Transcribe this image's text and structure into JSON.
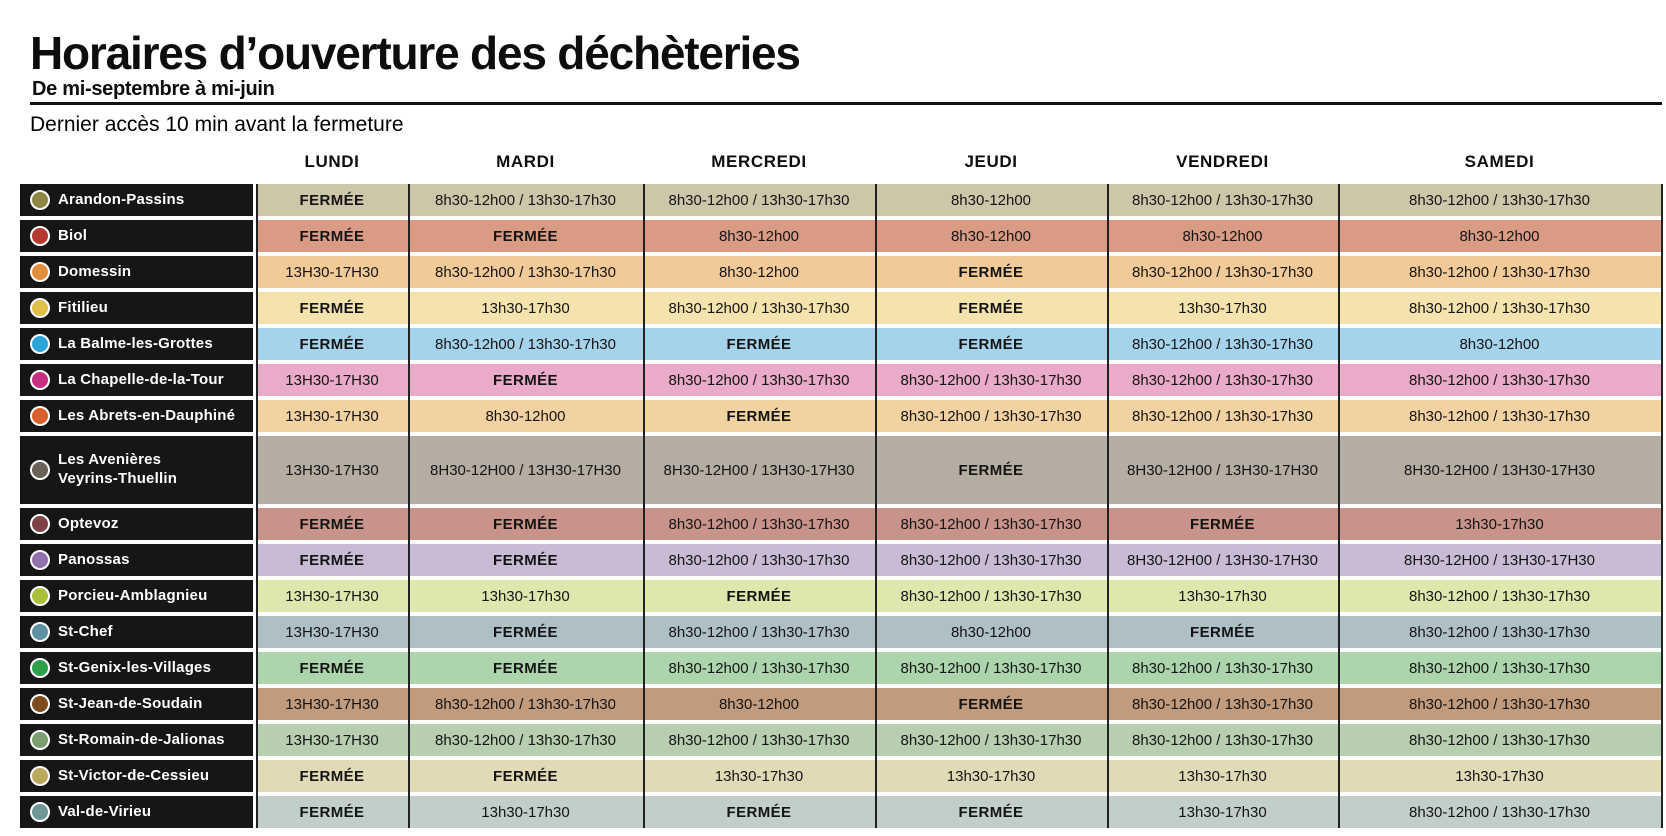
{
  "page": {
    "title": "Horaires d’ouverture des déchèteries",
    "subtitle": "De mi-septembre à mi-juin",
    "note": "Dernier accès 10 min avant la fermeture"
  },
  "table": {
    "day_headers": [
      "LUNDI",
      "MARDI",
      "MERCREDI",
      "JEUDI",
      "VENDREDI",
      "SAMEDI"
    ],
    "closed_label": "FERMÉE",
    "rows": [
      {
        "name": "Arandon-Passins",
        "dot_color": "#8d8748",
        "row_color": "#cdc7a9",
        "hours": [
          "FERMÉE",
          "8h30-12h00 / 13h30-17h30",
          "8h30-12h00 / 13h30-17h30",
          "8h30-12h00",
          "8h30-12h00 / 13h30-17h30",
          "8h30-12h00 / 13h30-17h30"
        ]
      },
      {
        "name": "Biol",
        "dot_color": "#b33931",
        "row_color": "#d99b84",
        "hours": [
          "FERMÉE",
          "FERMÉE",
          "8h30-12h00",
          "8h30-12h00",
          "8h30-12h00",
          "8h30-12h00"
        ]
      },
      {
        "name": "Domessin",
        "dot_color": "#e28d3b",
        "row_color": "#f2ca97",
        "hours": [
          "13H30-17H30",
          "8h30-12h00 / 13h30-17h30",
          "8h30-12h00",
          "FERMÉE",
          "8h30-12h00 / 13h30-17h30",
          "8h30-12h00 / 13h30-17h30"
        ]
      },
      {
        "name": "Fitilieu",
        "dot_color": "#dfc04a",
        "row_color": "#f5e3ad",
        "hours": [
          "FERMÉE",
          "13h30-17h30",
          "8h30-12h00 / 13h30-17h30",
          "FERMÉE",
          "13h30-17h30",
          "8h30-12h00 / 13h30-17h30"
        ]
      },
      {
        "name": "La Balme-les-Grottes",
        "dot_color": "#2aa6db",
        "row_color": "#a6d3ec",
        "hours": [
          "FERMÉE",
          "8h30-12h00 / 13h30-17h30",
          "FERMÉE",
          "FERMÉE",
          "8h30-12h00 / 13h30-17h30",
          "8h30-12h00"
        ]
      },
      {
        "name": "La Chapelle-de-la-Tour",
        "dot_color": "#c62f81",
        "row_color": "#e9abc7",
        "hours": [
          "13H30-17H30",
          "FERMÉE",
          "8h30-12h00 / 13h30-17h30",
          "8h30-12h00 / 13h30-17h30",
          "8h30-12h00 / 13h30-17h30",
          "8h30-12h00 / 13h30-17h30"
        ]
      },
      {
        "name": "Les Abrets-en-Dauphiné",
        "dot_color": "#d8602e",
        "row_color": "#f3d2a1",
        "hours": [
          "13H30-17H30",
          "8h30-12h00",
          "FERMÉE",
          "8h30-12h00 / 13h30-17h30",
          "8h30-12h00 / 13h30-17h30",
          "8h30-12h00 / 13h30-17h30"
        ]
      },
      {
        "name": "Les Avenières",
        "name2": "Veyrins-Thuellin",
        "dot_color": "#6b6257",
        "row_color": "#b3ada2",
        "hours": [
          "13H30-17H30",
          "8H30-12H00 / 13H30-17H30",
          "8H30-12H00 / 13H30-17H30",
          "FERMÉE",
          "8H30-12H00 / 13H30-17H30",
          "8H30-12H00 / 13H30-17H30"
        ]
      },
      {
        "name": "Optevoz",
        "dot_color": "#7c4444",
        "row_color": "#c7938a",
        "hours": [
          "FERMÉE",
          "FERMÉE",
          "8h30-12h00 / 13h30-17h30",
          "8h30-12h00 / 13h30-17h30",
          "FERMÉE",
          "13h30-17h30"
        ]
      },
      {
        "name": "Panossas",
        "dot_color": "#8f70aa",
        "row_color": "#c7bcd3",
        "hours": [
          "FERMÉE",
          "FERMÉE",
          "8h30-12h00 / 13h30-17h30",
          "8h30-12h00 / 13h30-17h30",
          "8H30-12H00 / 13H30-17H30",
          "8H30-12H00 / 13H30-17H30"
        ]
      },
      {
        "name": "Porcieu-Amblagnieu",
        "dot_color": "#a9c13d",
        "row_color": "#dfe6ae",
        "hours": [
          "13H30-17H30",
          "13h30-17h30",
          "FERMÉE",
          "8h30-12h00 / 13h30-17h30",
          "13h30-17h30",
          "8h30-12h00 / 13h30-17h30"
        ]
      },
      {
        "name": "St-Chef",
        "dot_color": "#5e90a2",
        "row_color": "#afc0c5",
        "hours": [
          "13H30-17H30",
          "FERMÉE",
          "8h30-12h00 / 13h30-17h30",
          "8h30-12h00",
          "FERMÉE",
          "8h30-12h00 / 13h30-17h30"
        ]
      },
      {
        "name": "St-Genix-les-Villages",
        "dot_color": "#2f9f49",
        "row_color": "#acd5ae",
        "hours": [
          "FERMÉE",
          "FERMÉE",
          "8h30-12h00 / 13h30-17h30",
          "8h30-12h00 / 13h30-17h30",
          "8h30-12h00 / 13h30-17h30",
          "8h30-12h00 / 13h30-17h30"
        ]
      },
      {
        "name": "St-Jean-de-Soudain",
        "dot_color": "#7c4b22",
        "row_color": "#c19b7c",
        "hours": [
          "13H30-17H30",
          "8h30-12h00 / 13h30-17h30",
          "8h30-12h00",
          "FERMÉE",
          "8h30-12h00 / 13h30-17h30",
          "8h30-12h00 / 13h30-17h30"
        ]
      },
      {
        "name": "St-Romain-de-Jalionas",
        "dot_color": "#7b9d6f",
        "row_color": "#b7ceb0",
        "hours": [
          "13H30-17H30",
          "8h30-12h00 / 13h30-17h30",
          "8h30-12h00 / 13h30-17h30",
          "8h30-12h00 / 13h30-17h30",
          "8h30-12h00 / 13h30-17h30",
          "8h30-12h00 / 13h30-17h30"
        ]
      },
      {
        "name": "St-Victor-de-Cessieu",
        "dot_color": "#bca960",
        "row_color": "#e0dab7",
        "hours": [
          "FERMÉE",
          "FERMÉE",
          "13h30-17h30",
          "13h30-17h30",
          "13h30-17h30",
          "13h30-17h30"
        ]
      },
      {
        "name": "Val-de-Virieu",
        "dot_color": "#6f9596",
        "row_color": "#c1cecc",
        "hours": [
          "FERMÉE",
          "13h30-17h30",
          "FERMÉE",
          "FERMÉE",
          "13h30-17h30",
          "8h30-12h00 / 13h30-17h30"
        ]
      }
    ]
  }
}
